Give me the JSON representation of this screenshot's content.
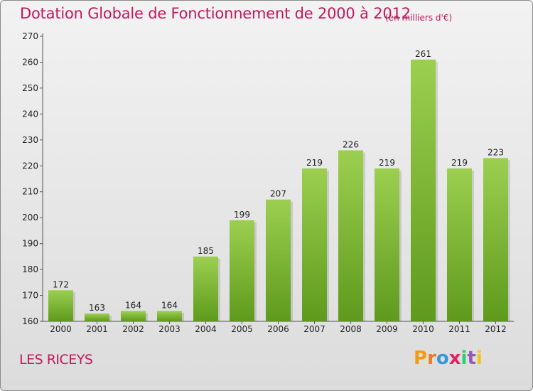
{
  "header": {
    "title": "Dotation Globale de Fonctionnement de 2000 à 2012",
    "unit": "(en milliers d'€)"
  },
  "footer": {
    "commune": "LES RICEYS",
    "brand": "Proxiti"
  },
  "colors": {
    "accent": "#c2185b",
    "bar_top": "#9ccf4f",
    "bar_bottom": "#5e9a1c",
    "brand_letters": [
      "#f39c12",
      "#e67e22",
      "#3498db",
      "#e91e63",
      "#2ecc71",
      "#9b59b6",
      "#f1c40f"
    ]
  },
  "chart_data": {
    "type": "bar",
    "categories": [
      "2000",
      "2001",
      "2002",
      "2003",
      "2004",
      "2005",
      "2006",
      "2007",
      "2008",
      "2009",
      "2010",
      "2011",
      "2012"
    ],
    "values": [
      172,
      163,
      164,
      164,
      185,
      199,
      207,
      219,
      226,
      219,
      261,
      219,
      223
    ],
    "title": "Dotation Globale de Fonctionnement de 2000 à 2012",
    "subtitle": "(en milliers d'€)",
    "ylim": [
      160,
      270
    ],
    "yticks": [
      160,
      170,
      180,
      190,
      200,
      210,
      220,
      230,
      240,
      250,
      260,
      270
    ],
    "grid": false,
    "data_labels": true
  }
}
